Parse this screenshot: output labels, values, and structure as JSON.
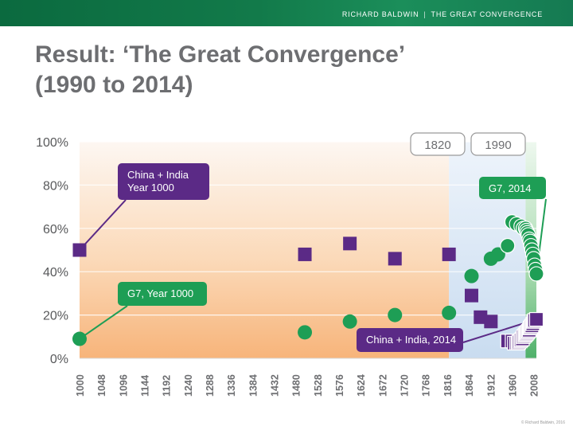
{
  "header": {
    "brand_name": "RICHARD BALDWIN",
    "brand_separator": "|",
    "brand_subtitle": "THE GREAT CONVERGENCE"
  },
  "slide": {
    "title_line1": "Result: ‘The Great Convergence’",
    "title_line2": "(1990 to 2014)"
  },
  "footer": {
    "copyright": "© Richard Baldwin, 2016"
  },
  "colors": {
    "purple": "#5b2a86",
    "green": "#1e9e55",
    "label_purple": "#5b2a86",
    "label_green": "#23a356"
  },
  "chart_data": {
    "type": "scatter",
    "x_tick_labels": [
      "1000",
      "1048",
      "1096",
      "1144",
      "1192",
      "1240",
      "1288",
      "1336",
      "1384",
      "1432",
      "1480",
      "1528",
      "1576",
      "1624",
      "1672",
      "1720",
      "1768",
      "1816",
      "1864",
      "1912",
      "1960",
      "2008"
    ],
    "y_tick_labels": [
      "0%",
      "20%",
      "40%",
      "60%",
      "80%",
      "100%"
    ],
    "xlim": [
      1000,
      2014
    ],
    "ylim": [
      0,
      100
    ],
    "grid": true,
    "period_labels": [
      {
        "text": "1820",
        "x": 1820
      },
      {
        "text": "1990",
        "x": 1990
      }
    ],
    "series": [
      {
        "marker": "square",
        "points": [
          {
            "x": 1000,
            "y": 50
          },
          {
            "x": 1500,
            "y": 48
          },
          {
            "x": 1600,
            "y": 53
          },
          {
            "x": 1700,
            "y": 46
          },
          {
            "x": 1820,
            "y": 48
          },
          {
            "x": 1870,
            "y": 29
          },
          {
            "x": 1890,
            "y": 19
          },
          {
            "x": 1913,
            "y": 17
          },
          {
            "x": 1950,
            "y": 8
          },
          {
            "x": 1960,
            "y": 8
          },
          {
            "x": 1965,
            "y": 7
          },
          {
            "x": 1970,
            "y": 7
          },
          {
            "x": 1973,
            "y": 7
          },
          {
            "x": 1975,
            "y": 7.5
          },
          {
            "x": 1978,
            "y": 8
          },
          {
            "x": 1980,
            "y": 8.5
          },
          {
            "x": 1983,
            "y": 9
          },
          {
            "x": 1985,
            "y": 10
          },
          {
            "x": 1988,
            "y": 10.5
          },
          {
            "x": 1990,
            "y": 11
          },
          {
            "x": 1992,
            "y": 11.5
          },
          {
            "x": 1994,
            "y": 12
          },
          {
            "x": 1996,
            "y": 12.5
          },
          {
            "x": 1998,
            "y": 13
          },
          {
            "x": 2000,
            "y": 14
          },
          {
            "x": 2002,
            "y": 14.5
          },
          {
            "x": 2004,
            "y": 15
          },
          {
            "x": 2006,
            "y": 16
          },
          {
            "x": 2008,
            "y": 17
          },
          {
            "x": 2010,
            "y": 17.5
          },
          {
            "x": 2014,
            "y": 18
          }
        ]
      },
      {
        "marker": "circle",
        "points": [
          {
            "x": 1000,
            "y": 9
          },
          {
            "x": 1500,
            "y": 12
          },
          {
            "x": 1600,
            "y": 17
          },
          {
            "x": 1700,
            "y": 20
          },
          {
            "x": 1820,
            "y": 21
          },
          {
            "x": 1870,
            "y": 38
          },
          {
            "x": 1913,
            "y": 46
          },
          {
            "x": 1929,
            "y": 48
          },
          {
            "x": 1950,
            "y": 52
          },
          {
            "x": 1960,
            "y": 63
          },
          {
            "x": 1970,
            "y": 62
          },
          {
            "x": 1980,
            "y": 61
          },
          {
            "x": 1985,
            "y": 60
          },
          {
            "x": 1990,
            "y": 60
          },
          {
            "x": 1992,
            "y": 59
          },
          {
            "x": 1994,
            "y": 58
          },
          {
            "x": 1996,
            "y": 57
          },
          {
            "x": 1998,
            "y": 55
          },
          {
            "x": 2000,
            "y": 54
          },
          {
            "x": 2002,
            "y": 52
          },
          {
            "x": 2004,
            "y": 50
          },
          {
            "x": 2006,
            "y": 48
          },
          {
            "x": 2008,
            "y": 46
          },
          {
            "x": 2010,
            "y": 43
          },
          {
            "x": 2012,
            "y": 41
          },
          {
            "x": 2014,
            "y": 39
          }
        ]
      }
    ],
    "annotations": [
      {
        "text_lines": [
          "China + India",
          "Year 1000"
        ],
        "color": "purple",
        "points_to": {
          "x": 1000,
          "y": 50
        }
      },
      {
        "text_lines": [
          "G7, Year 1000"
        ],
        "color": "green",
        "points_to": {
          "x": 1000,
          "y": 9
        }
      },
      {
        "text_lines": [
          "G7, 2014"
        ],
        "color": "green",
        "points_to": {
          "x": 2014,
          "y": 39
        }
      },
      {
        "text_lines": [
          "China + India, 2014"
        ],
        "color": "purple",
        "points_to": {
          "x": 2014,
          "y": 18
        }
      }
    ]
  }
}
